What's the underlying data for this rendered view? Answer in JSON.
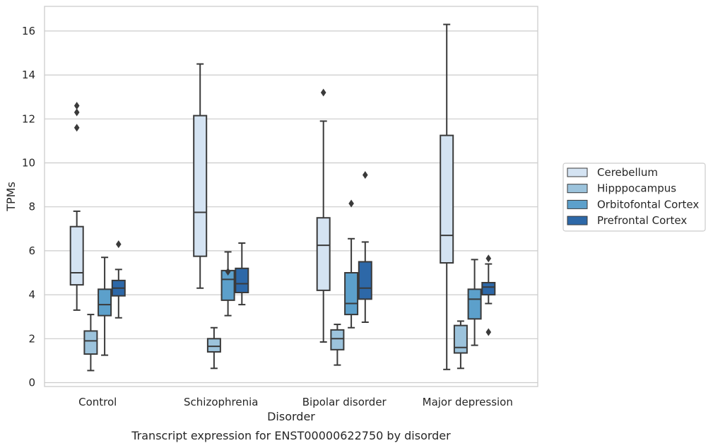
{
  "chart_data": {
    "type": "box",
    "title": "",
    "caption": "Transcript expression for ENST00000622750 by disorder",
    "xlabel": "Disorder",
    "ylabel": "TPMs",
    "ylim": [
      -0.2,
      17.1
    ],
    "yticks": [
      0,
      2,
      4,
      6,
      8,
      10,
      12,
      14,
      16
    ],
    "grid": "horizontal",
    "legend_position": "right",
    "categories": [
      "Control",
      "Schizophrenia",
      "Bipolar disorder",
      "Major depression"
    ],
    "series": [
      {
        "name": "Cerebellum",
        "color": "#d4e3f2",
        "boxes": [
          {
            "whislo": 3.3,
            "q1": 4.45,
            "med": 5.0,
            "q3": 7.1,
            "whishi": 7.8,
            "fliers": [
              11.6,
              12.3,
              12.6
            ]
          },
          {
            "whislo": 4.3,
            "q1": 5.75,
            "med": 7.75,
            "q3": 12.15,
            "whishi": 14.5,
            "fliers": []
          },
          {
            "whislo": 1.85,
            "q1": 4.2,
            "med": 6.25,
            "q3": 7.5,
            "whishi": 11.9,
            "fliers": [
              13.2
            ]
          },
          {
            "whislo": 0.6,
            "q1": 5.45,
            "med": 6.7,
            "q3": 11.25,
            "whishi": 16.3,
            "fliers": []
          }
        ]
      },
      {
        "name": "Hipppocampus",
        "color": "#9cc3dc",
        "boxes": [
          {
            "whislo": 0.55,
            "q1": 1.3,
            "med": 1.9,
            "q3": 2.35,
            "whishi": 3.1,
            "fliers": []
          },
          {
            "whislo": 0.65,
            "q1": 1.4,
            "med": 1.65,
            "q3": 2.0,
            "whishi": 2.5,
            "fliers": []
          },
          {
            "whislo": 0.8,
            "q1": 1.5,
            "med": 2.0,
            "q3": 2.4,
            "whishi": 2.65,
            "fliers": []
          },
          {
            "whislo": 0.65,
            "q1": 1.35,
            "med": 1.6,
            "q3": 2.6,
            "whishi": 2.8,
            "fliers": []
          }
        ]
      },
      {
        "name": "Orbitofontal Cortex",
        "color": "#5ca0cb",
        "boxes": [
          {
            "whislo": 1.25,
            "q1": 3.05,
            "med": 3.55,
            "q3": 4.25,
            "whishi": 5.7,
            "fliers": []
          },
          {
            "whislo": 3.05,
            "q1": 3.75,
            "med": 4.7,
            "q3": 5.1,
            "whishi": 5.95,
            "fliers": [
              5.05
            ]
          },
          {
            "whislo": 2.5,
            "q1": 3.1,
            "med": 3.6,
            "q3": 5.0,
            "whishi": 6.55,
            "fliers": [
              8.15
            ]
          },
          {
            "whislo": 1.7,
            "q1": 2.9,
            "med": 3.8,
            "q3": 4.25,
            "whishi": 5.6,
            "fliers": []
          }
        ]
      },
      {
        "name": "Prefrontal Cortex",
        "color": "#2d68a8",
        "boxes": [
          {
            "whislo": 2.95,
            "q1": 3.95,
            "med": 4.3,
            "q3": 4.65,
            "whishi": 5.15,
            "fliers": [
              6.3
            ]
          },
          {
            "whislo": 3.55,
            "q1": 4.1,
            "med": 4.5,
            "q3": 5.2,
            "whishi": 6.35,
            "fliers": []
          },
          {
            "whislo": 2.75,
            "q1": 3.8,
            "med": 4.3,
            "q3": 5.5,
            "whishi": 6.4,
            "fliers": [
              9.45
            ]
          },
          {
            "whislo": 3.6,
            "q1": 4.0,
            "med": 4.35,
            "q3": 4.55,
            "whishi": 5.4,
            "fliers": [
              2.3,
              5.65
            ]
          }
        ]
      }
    ]
  }
}
